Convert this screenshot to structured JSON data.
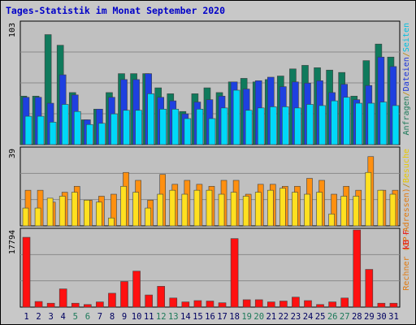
{
  "chart_data": {
    "type": "bar",
    "title": "Tages-Statistik im Monat September 2020",
    "categories": [
      "1",
      "2",
      "3",
      "4",
      "5",
      "6",
      "7",
      "8",
      "9",
      "10",
      "11",
      "12",
      "13",
      "14",
      "15",
      "16",
      "17",
      "18",
      "19",
      "20",
      "21",
      "22",
      "23",
      "24",
      "25",
      "26",
      "27",
      "28",
      "29",
      "30",
      "31"
    ],
    "weekend_days": [
      "5",
      "6",
      "12",
      "13",
      "19",
      "20",
      "26",
      "27"
    ],
    "panels": [
      {
        "id": "top",
        "ymax_label": "103",
        "ymax": 103,
        "right_label_parts": [
          {
            "text": "Anfragen",
            "color": "#1e7a5a"
          },
          {
            "text": "/",
            "color": "#b8860b"
          },
          {
            "text": "Dateien",
            "color": "#1a33d8"
          },
          {
            "text": "/",
            "color": "#b8860b"
          },
          {
            "text": "Seiten",
            "color": "#00bfe0"
          }
        ],
        "series": [
          {
            "name": "Anfragen",
            "color": "#0f7a5c",
            "values": [
              41,
              41,
              93,
              84,
              44,
              21,
              30,
              44,
              60,
              60,
              60,
              48,
              43,
              28,
              43,
              48,
              44,
              53,
              56,
              53,
              55,
              58,
              64,
              67,
              65,
              63,
              61,
              41,
              71,
              85,
              74
            ]
          },
          {
            "name": "Dateien",
            "color": "#1e40e0",
            "values": [
              40,
              40,
              35,
              59,
              42,
              21,
              30,
              40,
              55,
              55,
              60,
              40,
              37,
              26,
              36,
              38,
              41,
              53,
              47,
              54,
              57,
              49,
              53,
              52,
              54,
              44,
              51,
              38,
              50,
              74,
              66
            ]
          },
          {
            "name": "Seiten",
            "color": "#00d8f8",
            "values": [
              24,
              24,
              19,
              34,
              28,
              17,
              18,
              26,
              29,
              29,
              43,
              30,
              30,
              22,
              30,
              22,
              31,
              46,
              29,
              31,
              32,
              32,
              31,
              34,
              33,
              37,
              40,
              35,
              35,
              36,
              33
            ]
          }
        ]
      },
      {
        "id": "middle",
        "ymax_label": "39",
        "ymax": 39,
        "right_label_parts": [
          {
            "text": "Rechner (IP-Adressen)",
            "color": "#e0780c"
          },
          {
            "text": "/",
            "color": "#b8860b"
          },
          {
            "text": "Besuche",
            "color": "#e8c800"
          }
        ],
        "series": [
          {
            "name": "Rechner (IP-Adressen)",
            "color": "#ff9010",
            "values": [
              18,
              18,
              12,
              17,
              20,
              13,
              15,
              16,
              27,
              23,
              13,
              26,
              21,
              23,
              21,
              20,
              23,
              23,
              16,
              21,
              21,
              20,
              20,
              24,
              23,
              16,
              20,
              18,
              35,
              18,
              18
            ]
          },
          {
            "name": "Besuche",
            "color": "#ffe020",
            "values": [
              9,
              9,
              14,
              15,
              17,
              13,
              12,
              4,
              20,
              17,
              9,
              16,
              18,
              16,
              18,
              18,
              16,
              17,
              15,
              17,
              18,
              19,
              17,
              16,
              17,
              6,
              15,
              15,
              27,
              18,
              16
            ]
          }
        ]
      },
      {
        "id": "bottom",
        "ymax_label": "17794",
        "ymax": 17794,
        "right_label_parts": [
          {
            "text": "kB F",
            "color": "#e81010"
          }
        ],
        "series": [
          {
            "name": "kB F",
            "color": "#ff1010",
            "values": [
              16100,
              1300,
              900,
              4200,
              900,
              600,
              1200,
              3200,
              5900,
              8300,
              2800,
              4800,
              2100,
              1200,
              1500,
              1400,
              1000,
              15800,
              1700,
              1700,
              1200,
              1400,
              2300,
              1500,
              600,
              1200,
              2100,
              17794,
              8700,
              900,
              900
            ]
          }
        ]
      }
    ]
  },
  "colors": {
    "background": "#c8c8c8",
    "plot_background": "#c0c0c0",
    "title_color": "#0000c8",
    "weekday_label": "#000060",
    "weekend_label": "#1e7a5a"
  }
}
